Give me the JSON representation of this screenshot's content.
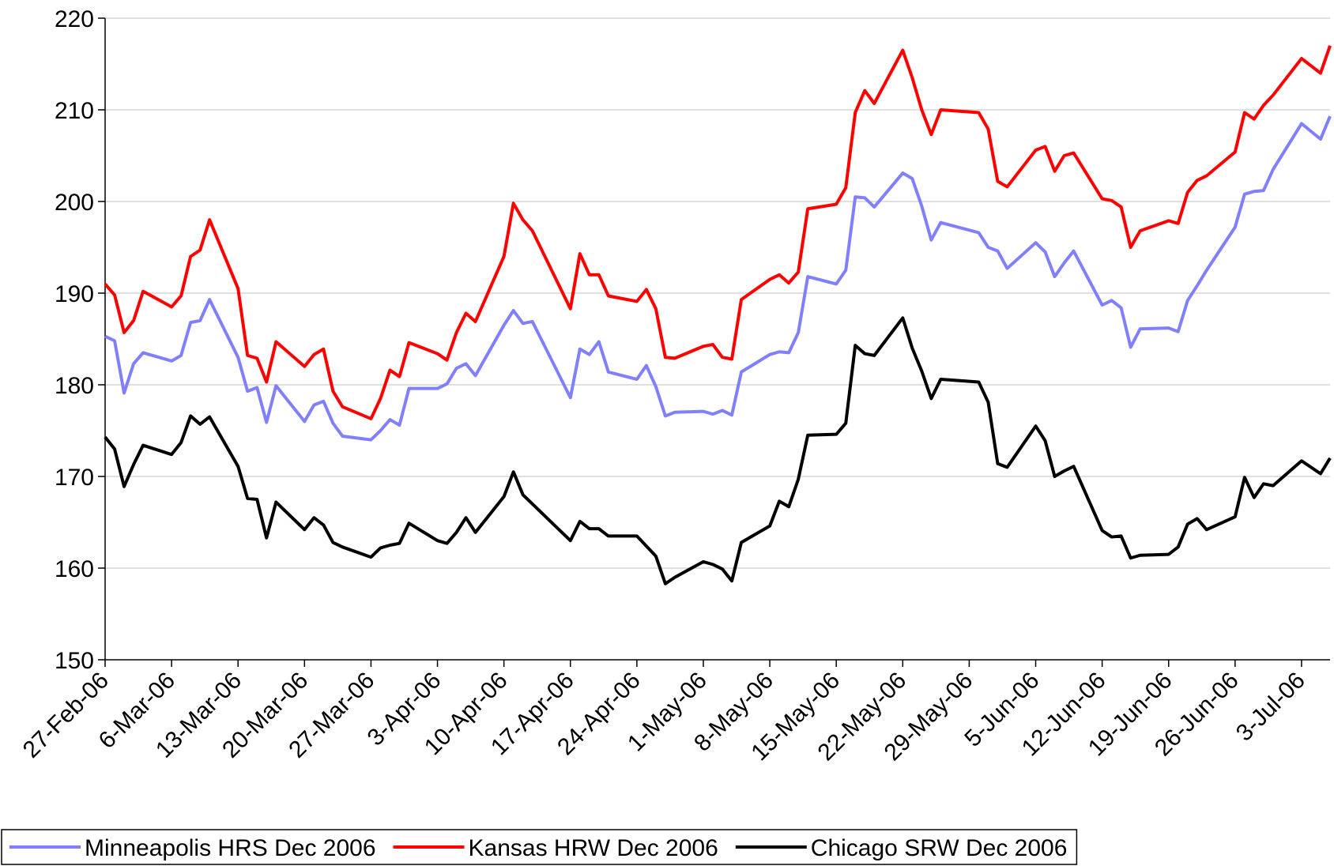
{
  "chart_data": {
    "type": "line",
    "x": [
      "2006-02-27",
      "2006-02-28",
      "2006-03-01",
      "2006-03-02",
      "2006-03-03",
      "2006-03-06",
      "2006-03-07",
      "2006-03-08",
      "2006-03-09",
      "2006-03-10",
      "2006-03-13",
      "2006-03-14",
      "2006-03-15",
      "2006-03-16",
      "2006-03-17",
      "2006-03-20",
      "2006-03-21",
      "2006-03-22",
      "2006-03-23",
      "2006-03-24",
      "2006-03-27",
      "2006-03-28",
      "2006-03-29",
      "2006-03-30",
      "2006-03-31",
      "2006-04-03",
      "2006-04-04",
      "2006-04-05",
      "2006-04-06",
      "2006-04-07",
      "2006-04-10",
      "2006-04-11",
      "2006-04-12",
      "2006-04-13",
      "2006-04-17",
      "2006-04-18",
      "2006-04-19",
      "2006-04-20",
      "2006-04-21",
      "2006-04-24",
      "2006-04-25",
      "2006-04-26",
      "2006-04-27",
      "2006-04-28",
      "2006-05-01",
      "2006-05-02",
      "2006-05-03",
      "2006-05-04",
      "2006-05-05",
      "2006-05-08",
      "2006-05-09",
      "2006-05-10",
      "2006-05-11",
      "2006-05-12",
      "2006-05-15",
      "2006-05-16",
      "2006-05-17",
      "2006-05-18",
      "2006-05-19",
      "2006-05-22",
      "2006-05-23",
      "2006-05-24",
      "2006-05-25",
      "2006-05-26",
      "2006-05-30",
      "2006-05-31",
      "2006-06-01",
      "2006-06-02",
      "2006-06-05",
      "2006-06-06",
      "2006-06-07",
      "2006-06-08",
      "2006-06-09",
      "2006-06-12",
      "2006-06-13",
      "2006-06-14",
      "2006-06-15",
      "2006-06-16",
      "2006-06-19",
      "2006-06-20",
      "2006-06-21",
      "2006-06-22",
      "2006-06-23",
      "2006-06-26",
      "2006-06-27",
      "2006-06-28",
      "2006-06-29",
      "2006-06-30",
      "2006-07-03",
      "2006-07-05",
      "2006-07-06"
    ],
    "series": [
      {
        "name": "Minneapolis HRS Dec 2006",
        "color": "#8080ff",
        "values": [
          185.3,
          184.8,
          179.1,
          182.3,
          183.5,
          182.6,
          183.2,
          186.8,
          187,
          189.3,
          183,
          179.3,
          179.7,
          175.9,
          179.9,
          176,
          177.8,
          178.2,
          175.8,
          174.4,
          174,
          175,
          176.2,
          175.6,
          179.6,
          179.6,
          180.1,
          181.8,
          182.3,
          181,
          186.5,
          188.1,
          186.7,
          186.9,
          178.6,
          183.9,
          183.3,
          184.7,
          181.4,
          180.6,
          182.1,
          179.8,
          176.6,
          177,
          177.1,
          176.8,
          177.2,
          176.7,
          181.4,
          183.3,
          183.6,
          183.5,
          185.7,
          191.8,
          191,
          192.5,
          200.5,
          200.4,
          199.4,
          203.1,
          202.5,
          199.5,
          195.8,
          197.7,
          196.6,
          195,
          194.6,
          192.7,
          195.5,
          194.5,
          191.8,
          193.3,
          194.6,
          188.7,
          189.2,
          188.4,
          184.1,
          186.1,
          186.2,
          185.8,
          189.2,
          190.8,
          192.5,
          197.2,
          200.8,
          201.1,
          201.2,
          203.5,
          208.5,
          206.8,
          209.3
        ]
      },
      {
        "name": "Kansas HRW Dec 2006",
        "color": "#ff0000",
        "values": [
          191,
          189.8,
          185.7,
          187,
          190.2,
          188.5,
          189.7,
          194,
          194.7,
          198,
          190.5,
          183.2,
          182.9,
          180.3,
          184.7,
          182,
          183.3,
          183.9,
          179.3,
          177.6,
          176.3,
          178.5,
          181.6,
          180.9,
          184.6,
          183.4,
          182.7,
          185.7,
          187.8,
          186.9,
          194,
          199.8,
          198,
          196.8,
          188.3,
          194.3,
          192,
          192,
          189.7,
          189.1,
          190.4,
          188.3,
          183,
          182.9,
          184.2,
          184.4,
          183,
          182.8,
          189.3,
          191.5,
          192,
          191.1,
          192.3,
          199.2,
          199.7,
          201.5,
          209.7,
          212.1,
          210.7,
          216.5,
          213.5,
          210,
          207.3,
          210,
          209.7,
          207.9,
          202.2,
          201.6,
          205.6,
          206,
          203.3,
          205,
          205.3,
          200.3,
          200.1,
          199.4,
          195,
          196.8,
          197.9,
          197.6,
          201,
          202.3,
          202.8,
          205.4,
          209.7,
          209,
          210.5,
          211.6,
          215.6,
          214,
          217
        ]
      },
      {
        "name": "Chicago SRW Dec 2006",
        "color": "#000000",
        "values": [
          174.3,
          173,
          168.9,
          171.3,
          173.4,
          172.4,
          173.7,
          176.6,
          175.7,
          176.5,
          171.1,
          167.6,
          167.5,
          163.3,
          167.2,
          164.2,
          165.5,
          164.7,
          162.8,
          162.3,
          161.2,
          162.2,
          162.5,
          162.7,
          164.9,
          163,
          162.7,
          163.9,
          165.5,
          163.9,
          167.8,
          170.5,
          168,
          167,
          163,
          165.1,
          164.3,
          164.3,
          163.5,
          163.5,
          162.4,
          161.3,
          158.3,
          159,
          160.7,
          160.4,
          159.9,
          158.6,
          162.8,
          164.6,
          167.3,
          166.7,
          169.7,
          174.5,
          174.6,
          175.8,
          184.3,
          183.4,
          183.2,
          187.3,
          184,
          181.5,
          178.5,
          180.6,
          180.3,
          178.1,
          171.4,
          171,
          175.5,
          173.9,
          170,
          170.6,
          171.1,
          164.1,
          163.4,
          163.5,
          161.1,
          161.4,
          161.5,
          162.3,
          164.8,
          165.4,
          164.2,
          165.6,
          169.9,
          167.7,
          169.2,
          169,
          171.7,
          170.3,
          172
        ]
      }
    ],
    "xlim": [
      "2006-02-27",
      "2006-07-06"
    ],
    "xticks": [
      {
        "value": "2006-02-27",
        "label": "27-Feb-06"
      },
      {
        "value": "2006-03-06",
        "label": "6-Mar-06"
      },
      {
        "value": "2006-03-13",
        "label": "13-Mar-06"
      },
      {
        "value": "2006-03-20",
        "label": "20-Mar-06"
      },
      {
        "value": "2006-03-27",
        "label": "27-Mar-06"
      },
      {
        "value": "2006-04-03",
        "label": "3-Apr-06"
      },
      {
        "value": "2006-04-10",
        "label": "10-Apr-06"
      },
      {
        "value": "2006-04-17",
        "label": "17-Apr-06"
      },
      {
        "value": "2006-04-24",
        "label": "24-Apr-06"
      },
      {
        "value": "2006-05-01",
        "label": "1-May-06"
      },
      {
        "value": "2006-05-08",
        "label": "8-May-06"
      },
      {
        "value": "2006-05-15",
        "label": "15-May-06"
      },
      {
        "value": "2006-05-22",
        "label": "22-May-06"
      },
      {
        "value": "2006-05-29",
        "label": "29-May-06"
      },
      {
        "value": "2006-06-05",
        "label": "5-Jun-06"
      },
      {
        "value": "2006-06-12",
        "label": "12-Jun-06"
      },
      {
        "value": "2006-06-19",
        "label": "19-Jun-06"
      },
      {
        "value": "2006-06-26",
        "label": "26-Jun-06"
      },
      {
        "value": "2006-07-03",
        "label": "3-Jul-06"
      }
    ],
    "ylim": [
      150,
      220
    ],
    "yticks": [
      150,
      160,
      170,
      180,
      190,
      200,
      210,
      220
    ],
    "grid": true,
    "legend": "bottom"
  }
}
